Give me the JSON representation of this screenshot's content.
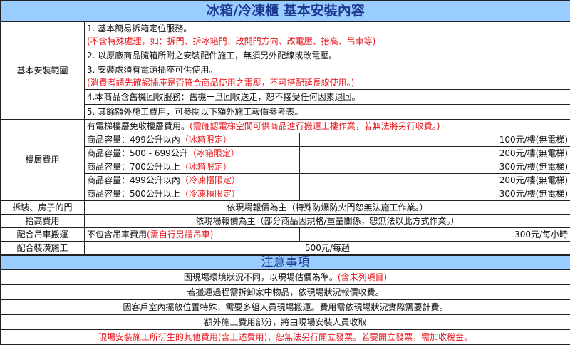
{
  "title": "冰箱/冷凍櫃 基本安裝內容",
  "basic": {
    "label": "基本安裝範圍",
    "items": [
      {
        "text": "1. 基本簡易拆箱定位服務。",
        "note": "(不含特殊處理，如：拆門、拆冰箱門、改開門方向、改電壓、抬高、吊車等)"
      },
      {
        "text": "2. 以原廠商品隨箱所附之安裝配件施工，無須另外配線或改電壓。",
        "note": ""
      },
      {
        "text": "3. 安裝處須有電源插座可供使用。",
        "note": "(消費者請先確認插座是否符合商品使用之電壓，不可搭配延長線使用。)"
      },
      {
        "text": "4.本商品含舊機回收服務：舊機一旦回收送走，恕不接受任何因素退回。",
        "note": ""
      },
      {
        "text": "5. 其餘額外施工費用，可參閱以下額外施工報價參考表。",
        "note": ""
      }
    ]
  },
  "floor": {
    "label": "樓層費用",
    "intro": "有電梯樓層免收樓層費用。",
    "intro_note": "(需確認電梯空間可供商品進行搬運上樓作業，若無法將另行收費。)",
    "rows": [
      {
        "cap": "商品容量：499公升以內",
        "limit": "（冰箱限定）",
        "price": "100元/樓(無電梯)"
      },
      {
        "cap": "商品容量：500 - 699公升",
        "limit": "（冰箱限定）",
        "price": "200元/樓(無電梯)"
      },
      {
        "cap": "商品容量：700公升以上",
        "limit": "（冰箱限定）",
        "price": "300元/樓(無電梯)"
      },
      {
        "cap": "商品容量：499公升以內",
        "limit": "（冷凍櫃限定）",
        "price": "200元/樓(無電梯)"
      },
      {
        "cap": "商品容量：500公升以上",
        "limit": "（冷凍櫃限定）",
        "price": "300元/樓(無電梯)"
      }
    ]
  },
  "door": {
    "label": "拆裝、房子的門",
    "text": "依現場報價為主（特殊防爆防火門恕無法施工作業。）"
  },
  "raise": {
    "label": "抬高費用",
    "text": "依現場報價為主（部分商品因規格/重量關係，恕無法以此方式作業。）"
  },
  "crane": {
    "label": "配合吊車搬運",
    "text": "不包含吊車費用",
    "note": "(需自行另請吊車)",
    "price": "300元/每小時"
  },
  "renovation": {
    "label": "配合裝潢施工",
    "price": "500元/每趟"
  },
  "notes": {
    "title": "注意事項",
    "items": [
      {
        "text": "因現場環境狀況不同，以現場估價為準。",
        "red": "(含未列項目)"
      },
      {
        "text": "若搬運過程需拆卸家中物品，依現場狀況報價收費。",
        "red": ""
      },
      {
        "text": "因客戶室內擺放位置特殊，需要多組人員現場搬運。費用需依現場狀況實際需要計費。",
        "red": ""
      },
      {
        "text": "額外施工費用部分，將由現場安裝人員收取",
        "red": ""
      },
      {
        "text": "",
        "red": "現場安裝施工所衍生的其他費用(含上述費用)，恕無法另行開立發票。若要開立發票，需加收稅金。"
      }
    ]
  },
  "colors": {
    "header_bg": "#99ccff",
    "header_text": "#1f3a93",
    "accent_red": "#e8191f"
  }
}
